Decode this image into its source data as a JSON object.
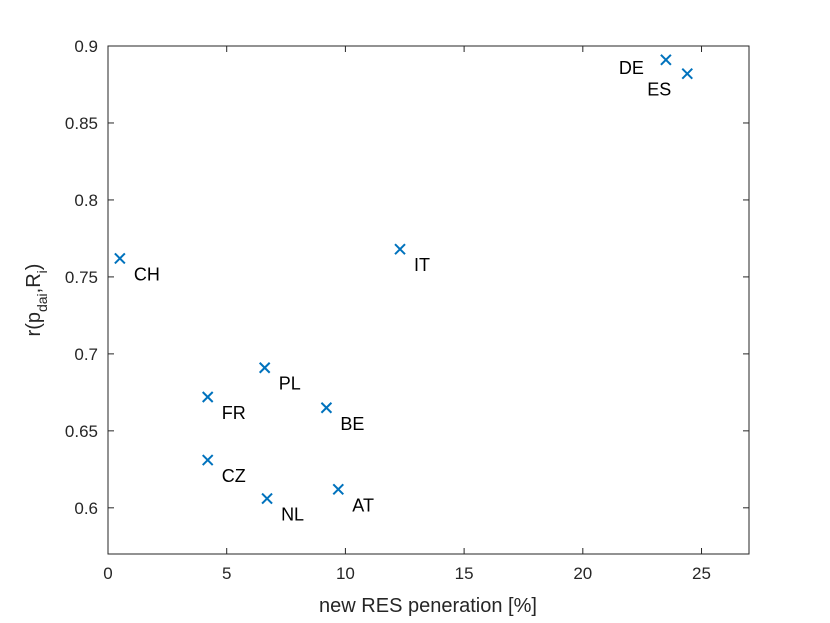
{
  "chart_data": {
    "type": "scatter",
    "xlabel": "new RES peneration [%]",
    "ylabel": {
      "main": "r(p",
      "sub1": "dai",
      "mid": ",R",
      "sub2": "i",
      "close": ")"
    },
    "xlim": [
      0,
      27
    ],
    "ylim": [
      0.57,
      0.9
    ],
    "xticks": [
      0,
      5,
      10,
      15,
      20,
      25
    ],
    "yticks": [
      0.6,
      0.65,
      0.7,
      0.75,
      0.8,
      0.85,
      0.9
    ],
    "grid": false,
    "marker": "x",
    "color": "#0072bd",
    "points": [
      {
        "label": "CH",
        "x": 0.5,
        "y": 0.762,
        "label_pos": "below-right"
      },
      {
        "label": "IT",
        "x": 12.3,
        "y": 0.768,
        "label_pos": "below-right"
      },
      {
        "label": "DE",
        "x": 23.5,
        "y": 0.891,
        "label_pos": "left"
      },
      {
        "label": "ES",
        "x": 24.4,
        "y": 0.882,
        "label_pos": "below-left"
      },
      {
        "label": "PL",
        "x": 6.6,
        "y": 0.691,
        "label_pos": "below-right"
      },
      {
        "label": "FR",
        "x": 4.2,
        "y": 0.672,
        "label_pos": "below-right"
      },
      {
        "label": "BE",
        "x": 9.2,
        "y": 0.665,
        "label_pos": "below-right"
      },
      {
        "label": "CZ",
        "x": 4.2,
        "y": 0.631,
        "label_pos": "below-right"
      },
      {
        "label": "NL",
        "x": 6.7,
        "y": 0.606,
        "label_pos": "below-right"
      },
      {
        "label": "AT",
        "x": 9.7,
        "y": 0.612,
        "label_pos": "below-right"
      }
    ]
  }
}
